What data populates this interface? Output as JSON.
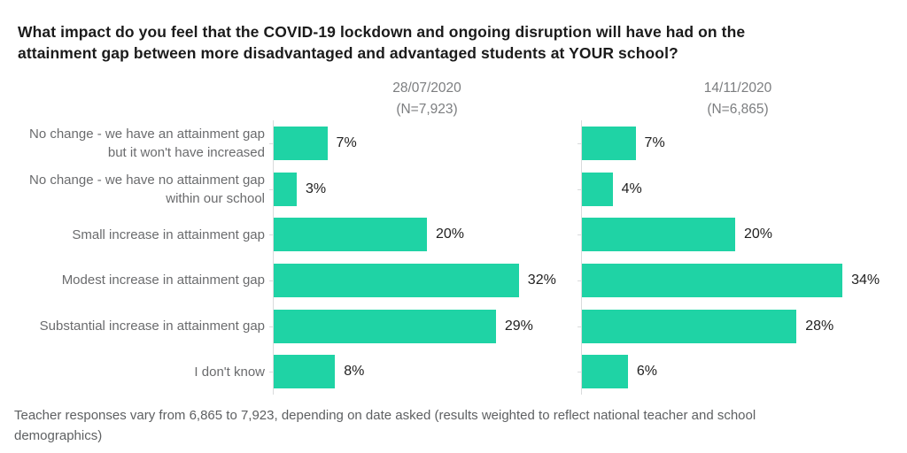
{
  "title": {
    "line1": "What impact do you feel that the COVID-19 lockdown and ongoing disruption will have had on the",
    "line2": "attainment gap between more disadvantaged and advantaged students at YOUR school?"
  },
  "chart_data": {
    "type": "bar",
    "orientation": "horizontal",
    "categories": [
      "No change - we have an attainment gap but it won't have increased",
      "No change - we have no attainment gap within our school",
      "Small increase in attainment gap",
      "Modest increase in attainment gap",
      "Substantial increase in attainment gap",
      "I don't know"
    ],
    "series": [
      {
        "name": "28/07/2020",
        "n_label": "(N=7,923)",
        "values": [
          7,
          3,
          20,
          32,
          29,
          8
        ]
      },
      {
        "name": "14/11/2020",
        "n_label": "(N=6,865)",
        "values": [
          7,
          4,
          20,
          34,
          28,
          6
        ]
      }
    ],
    "value_suffix": "%",
    "xlim": [
      0,
      40
    ],
    "grid": false,
    "legend_position": "top-column-headers"
  },
  "footer": {
    "line1": "Teacher responses vary from 6,865 to 7,923, depending on date asked (results weighted to reflect national teacher and school",
    "line2": "demographics)"
  },
  "colors": {
    "bar": "#1fd3a5",
    "axis": "#d9dbdc",
    "title_text": "#1b1b1b",
    "category_text": "#6a6b6d",
    "value_text": "#212121",
    "header_text": "#7c7e80",
    "footer_text": "#5e6062"
  }
}
